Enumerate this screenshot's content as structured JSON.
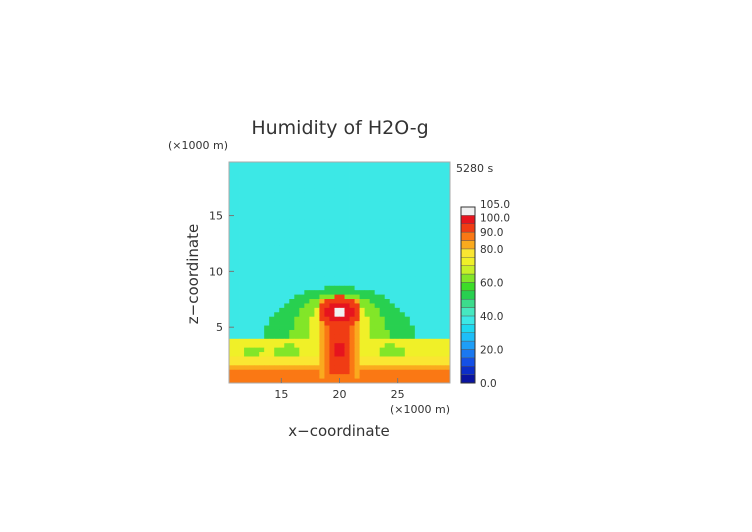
{
  "chart_data": {
    "type": "heatmap",
    "title": "Humidity of H2O-g",
    "time_label": "5280 s",
    "xlabel": "x−coordinate",
    "ylabel": "z−coordinate",
    "x_unit": "(×1000 m)",
    "y_unit": "(×1000 m)",
    "xlim": [
      10.5,
      29.5
    ],
    "ylim": [
      0,
      19.8
    ],
    "x_ticks": [
      15,
      20,
      25
    ],
    "y_ticks": [
      5,
      10,
      15
    ],
    "colorbar": {
      "min": 0,
      "max": 105,
      "step": 5,
      "tick_values": [
        0,
        20,
        40,
        60,
        80,
        90,
        100,
        105
      ],
      "tick_labels": [
        "0.0",
        "20.0",
        "40.0",
        "60.0",
        "80.0",
        "90.0",
        "100.0",
        "105.0"
      ]
    },
    "color_bands": [
      {
        "from": 0,
        "to": 5,
        "color": "#0a14a0"
      },
      {
        "from": 5,
        "to": 10,
        "color": "#0c2ec8"
      },
      {
        "from": 10,
        "to": 15,
        "color": "#1450e6"
      },
      {
        "from": 15,
        "to": 20,
        "color": "#1a78f0"
      },
      {
        "from": 20,
        "to": 25,
        "color": "#1e9ef8"
      },
      {
        "from": 25,
        "to": 30,
        "color": "#1ebef8"
      },
      {
        "from": 30,
        "to": 35,
        "color": "#1ed8f0"
      },
      {
        "from": 35,
        "to": 40,
        "color": "#3ce8e6"
      },
      {
        "from": 40,
        "to": 45,
        "color": "#46e8c0"
      },
      {
        "from": 45,
        "to": 50,
        "color": "#3cdc8c"
      },
      {
        "from": 50,
        "to": 55,
        "color": "#28d050"
      },
      {
        "from": 55,
        "to": 60,
        "color": "#3cdc28"
      },
      {
        "from": 60,
        "to": 65,
        "color": "#82e628"
      },
      {
        "from": 65,
        "to": 70,
        "color": "#c8f028"
      },
      {
        "from": 70,
        "to": 75,
        "color": "#f0f028"
      },
      {
        "from": 75,
        "to": 80,
        "color": "#fae632"
      },
      {
        "from": 80,
        "to": 85,
        "color": "#faaa1e"
      },
      {
        "from": 85,
        "to": 90,
        "color": "#fa7814"
      },
      {
        "from": 90,
        "to": 95,
        "color": "#f03c14"
      },
      {
        "from": 95,
        "to": 100,
        "color": "#e6141e"
      },
      {
        "from": 100,
        "to": 105,
        "color": "#f0f0f0"
      }
    ],
    "field": {
      "background_value": 38,
      "layers": [
        {
          "shape": "band",
          "z_top": 3.8,
          "value": 72
        },
        {
          "shape": "band",
          "z_top": 2.4,
          "value": 78
        },
        {
          "shape": "band",
          "z_top": 1.6,
          "value": 82
        },
        {
          "shape": "band",
          "z_top": 1.0,
          "value": 86
        },
        {
          "shape": "dome",
          "x_center": 20,
          "x_halfwidth": 6.5,
          "z_base": 3.8,
          "z_top": 8.6,
          "value": 52
        },
        {
          "shape": "dome",
          "x_center": 20,
          "x_halfwidth": 4.2,
          "z_base": 3.8,
          "z_top": 8.1,
          "value": 62
        },
        {
          "shape": "dome",
          "x_center": 20,
          "x_halfwidth": 2.8,
          "z_base": 3.8,
          "z_top": 7.7,
          "value": 73
        },
        {
          "shape": "column",
          "x_center": 20,
          "x_halfwidth": 1.9,
          "z_bottom": 0.5,
          "z_top": 7.5,
          "value": 82
        },
        {
          "shape": "column",
          "x_center": 20,
          "x_halfwidth": 1.4,
          "z_bottom": 0.5,
          "z_top": 7.3,
          "value": 88
        },
        {
          "shape": "column",
          "x_center": 20,
          "x_halfwidth": 1.0,
          "z_bottom": 0.8,
          "z_top": 7.0,
          "value": 93
        },
        {
          "shape": "ellipse",
          "x_center": 20,
          "z_center": 6.4,
          "rx": 1.9,
          "rz": 1.4,
          "value": 93
        },
        {
          "shape": "ellipse",
          "x_center": 20,
          "z_center": 6.3,
          "rx": 1.2,
          "rz": 0.9,
          "value": 97
        },
        {
          "shape": "ellipse",
          "x_center": 20,
          "z_center": 6.3,
          "rx": 0.55,
          "rz": 0.45,
          "value": 102
        },
        {
          "shape": "ellipse",
          "x_center": 20,
          "z_center": 3.1,
          "rx": 0.6,
          "rz": 0.7,
          "value": 97
        },
        {
          "shape": "ellipse",
          "x_center": 20,
          "z_center": 1.5,
          "rx": 1.0,
          "rz": 0.6,
          "value": 93
        },
        {
          "shape": "ellipse",
          "x_center": 15.5,
          "z_center": 2.8,
          "rx": 1.2,
          "rz": 0.6,
          "value": 62
        },
        {
          "shape": "ellipse",
          "x_center": 24.5,
          "z_center": 2.8,
          "rx": 1.2,
          "rz": 0.6,
          "value": 62
        },
        {
          "shape": "ellipse",
          "x_center": 12.5,
          "z_center": 2.8,
          "rx": 0.9,
          "rz": 0.5,
          "value": 62
        }
      ]
    }
  }
}
